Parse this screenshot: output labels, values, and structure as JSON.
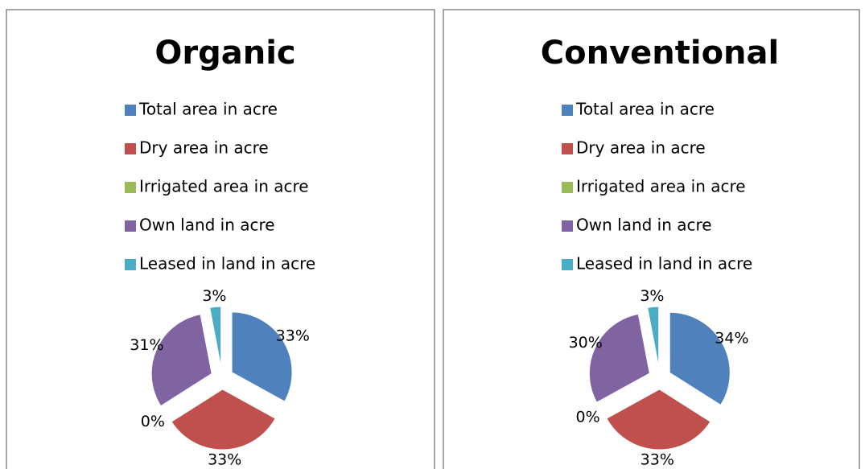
{
  "chart_data": [
    {
      "type": "pie",
      "title": "Organic",
      "categories": [
        "Total area in acre",
        "Dry area in acre",
        "Irrigated area in acre",
        "Own land in acre",
        "Leased in land in acre"
      ],
      "values": [
        33,
        33,
        0,
        31,
        3
      ],
      "value_labels": [
        "33%",
        "33%",
        "0%",
        "31%",
        "3%"
      ],
      "colors": [
        "#4f81bd",
        "#c0504d",
        "#9bbb59",
        "#8064a2",
        "#4bacc6"
      ]
    },
    {
      "type": "pie",
      "title": "Conventional",
      "categories": [
        "Total area in acre",
        "Dry area in acre",
        "Irrigated area in acre",
        "Own land in acre",
        "Leased in land in acre"
      ],
      "values": [
        34,
        33,
        0,
        30,
        3
      ],
      "value_labels": [
        "34%",
        "33%",
        "0%",
        "30%",
        "3%"
      ],
      "colors": [
        "#4f81bd",
        "#c0504d",
        "#9bbb59",
        "#8064a2",
        "#4bacc6"
      ]
    }
  ]
}
